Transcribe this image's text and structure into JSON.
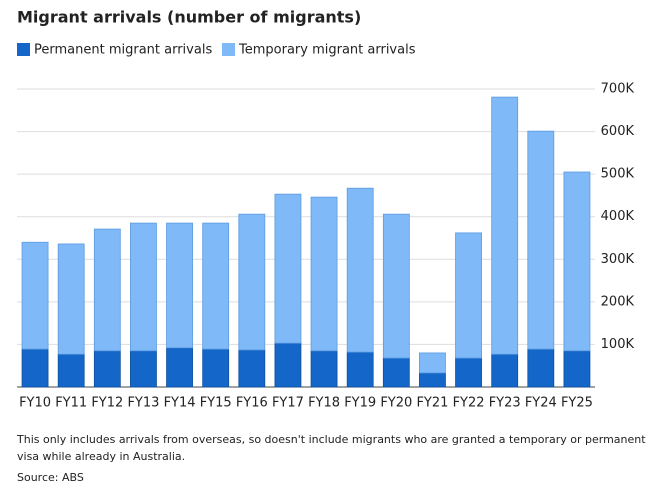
{
  "chart_data": {
    "type": "stacked_bar",
    "title": "Migrant arrivals (number of migrants)",
    "categories": [
      "FY10",
      "FY11",
      "FY12",
      "FY13",
      "FY14",
      "FY15",
      "FY16",
      "FY17",
      "FY18",
      "FY19",
      "FY20",
      "FY21",
      "FY22",
      "FY23",
      "FY24",
      "FY25"
    ],
    "series": [
      {
        "name": "Permanent migrant arrivals",
        "color": "#1467c9",
        "values": [
          89000,
          77000,
          85000,
          85000,
          92000,
          89000,
          87000,
          103000,
          85000,
          82000,
          68000,
          33000,
          68000,
          77000,
          89000,
          85000
        ]
      },
      {
        "name": "Temporary migrant arrivals",
        "color": "#80b9f8",
        "values": [
          251000,
          259000,
          286000,
          300000,
          293000,
          296000,
          319000,
          350000,
          361000,
          385000,
          338000,
          47000,
          294000,
          604000,
          512000,
          420000
        ]
      }
    ],
    "ylim": [
      0,
      700000
    ],
    "yticks": [
      {
        "value": 100000,
        "label": "100K"
      },
      {
        "value": 200000,
        "label": "200K"
      },
      {
        "value": 300000,
        "label": "300K"
      },
      {
        "value": 400000,
        "label": "400K"
      },
      {
        "value": 500000,
        "label": "500K"
      },
      {
        "value": 600000,
        "label": "600K"
      },
      {
        "value": 700000,
        "label": "700K"
      }
    ],
    "grid": true,
    "note": [
      "This only includes arrivals from overseas, so doesn't include migrants who are granted a temporary or permanent",
      "visa while already in Australia."
    ],
    "source": "Source: ABS"
  }
}
